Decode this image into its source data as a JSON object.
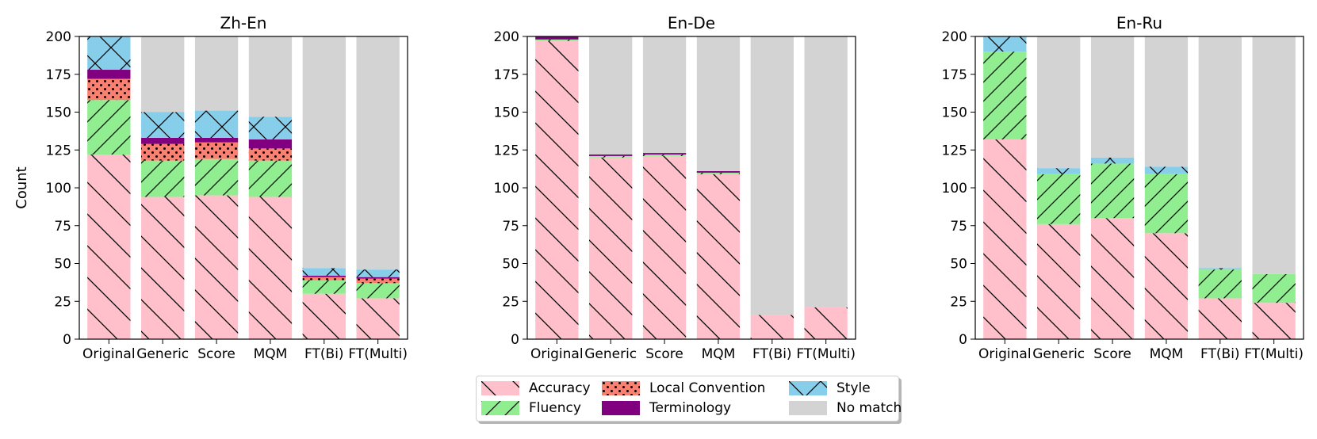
{
  "chart_data": [
    {
      "type": "bar",
      "stacked": true,
      "title": "Zh-En",
      "ylabel": "Count",
      "ylim": [
        0,
        200
      ],
      "yticks": [
        0,
        25,
        50,
        75,
        100,
        125,
        150,
        175,
        200
      ],
      "categories": [
        "Original",
        "Generic",
        "Score",
        "MQM",
        "FT(Bi)",
        "FT(Multi)"
      ],
      "series": [
        {
          "name": "Accuracy",
          "values": [
            122,
            94,
            95,
            94,
            30,
            27
          ]
        },
        {
          "name": "Fluency",
          "values": [
            36,
            24,
            24,
            24,
            9,
            10
          ]
        },
        {
          "name": "Local Convention",
          "values": [
            14,
            11,
            11,
            8,
            2,
            3
          ]
        },
        {
          "name": "Terminology",
          "values": [
            6,
            4,
            3,
            6,
            1,
            1
          ]
        },
        {
          "name": "Style",
          "values": [
            22,
            17,
            18,
            15,
            5,
            5
          ]
        },
        {
          "name": "No match",
          "values": [
            0,
            50,
            49,
            53,
            153,
            154
          ]
        }
      ]
    },
    {
      "type": "bar",
      "stacked": true,
      "title": "En-De",
      "ylabel": "",
      "ylim": [
        0,
        200
      ],
      "yticks": [
        0,
        25,
        50,
        75,
        100,
        125,
        150,
        175,
        200
      ],
      "categories": [
        "Original",
        "Generic",
        "Score",
        "MQM",
        "FT(Bi)",
        "FT(Multi)"
      ],
      "series": [
        {
          "name": "Accuracy",
          "values": [
            197,
            120,
            121,
            109,
            16,
            21
          ]
        },
        {
          "name": "Fluency",
          "values": [
            1,
            1,
            1,
            1,
            0,
            0
          ]
        },
        {
          "name": "Local Convention",
          "values": [
            0,
            0,
            0,
            0,
            0,
            0
          ]
        },
        {
          "name": "Terminology",
          "values": [
            2,
            1,
            1,
            1,
            0,
            0
          ]
        },
        {
          "name": "Style",
          "values": [
            0,
            0,
            0,
            0,
            0,
            0
          ]
        },
        {
          "name": "No match",
          "values": [
            0,
            78,
            77,
            89,
            184,
            179
          ]
        }
      ]
    },
    {
      "type": "bar",
      "stacked": true,
      "title": "En-Ru",
      "ylabel": "",
      "ylim": [
        0,
        200
      ],
      "yticks": [
        0,
        25,
        50,
        75,
        100,
        125,
        150,
        175,
        200
      ],
      "categories": [
        "Original",
        "Generic",
        "Score",
        "MQM",
        "FT(Bi)",
        "FT(Multi)"
      ],
      "series": [
        {
          "name": "Accuracy",
          "values": [
            132,
            76,
            80,
            70,
            27,
            24
          ]
        },
        {
          "name": "Fluency",
          "values": [
            58,
            33,
            36,
            39,
            19,
            19
          ]
        },
        {
          "name": "Local Convention",
          "values": [
            0,
            0,
            0,
            0,
            0,
            0
          ]
        },
        {
          "name": "Terminology",
          "values": [
            0,
            0,
            0,
            0,
            0,
            0
          ]
        },
        {
          "name": "Style",
          "values": [
            10,
            4,
            4,
            5,
            1,
            0
          ]
        },
        {
          "name": "No match",
          "values": [
            0,
            87,
            80,
            86,
            153,
            157
          ]
        }
      ]
    }
  ],
  "legend": {
    "placement": "bottom-center",
    "entries": [
      {
        "label": "Accuracy",
        "key": "accuracy"
      },
      {
        "label": "Local Convention",
        "key": "local"
      },
      {
        "label": "Style",
        "key": "style"
      },
      {
        "label": "Fluency",
        "key": "fluency"
      },
      {
        "label": "Terminology",
        "key": "terminology"
      },
      {
        "label": "No match",
        "key": "nomatch"
      }
    ]
  },
  "colors": {
    "Accuracy": "#ffc0cb",
    "Fluency": "#90ee90",
    "Local Convention": "#fa8072",
    "Terminology": "#800080",
    "Style": "#87ceeb",
    "No match": "#d3d3d3"
  }
}
